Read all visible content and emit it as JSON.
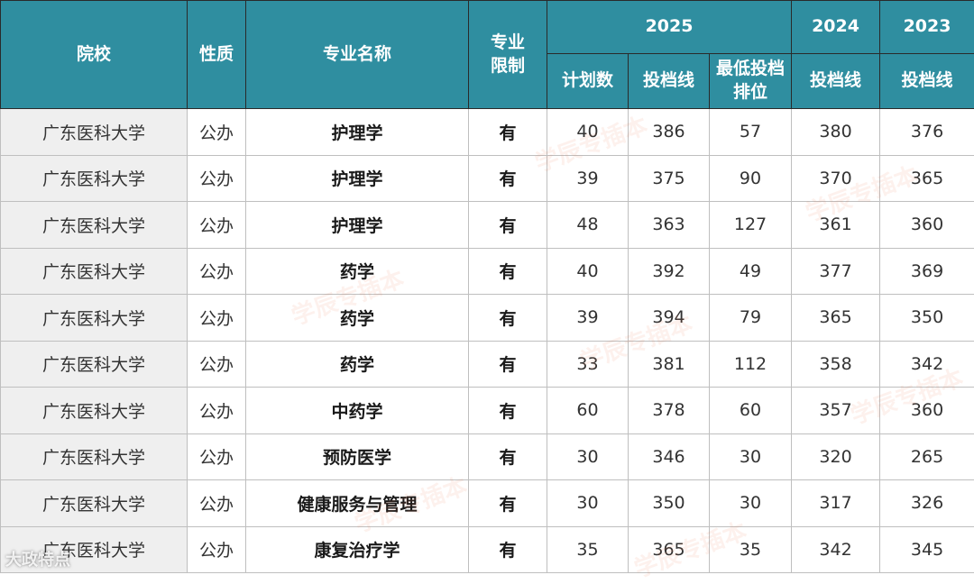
{
  "header": {
    "school": "院校",
    "nature": "性质",
    "major": "专业名称",
    "limit": "专业限制",
    "year_2025": "2025",
    "year_2024": "2024",
    "year_2023": "2023",
    "plan": "计划数",
    "line_2025": "投档线",
    "min_rank": "最低投档排位",
    "line_2024": "投档线",
    "line_2023": "投档线"
  },
  "rows": [
    {
      "school": "广东医科大学",
      "nature": "公办",
      "major": "护理学",
      "limit": "有",
      "plan": "40",
      "line2025": "386",
      "rank": "57",
      "line2024": "380",
      "line2023": "376"
    },
    {
      "school": "广东医科大学",
      "nature": "公办",
      "major": "护理学",
      "limit": "有",
      "plan": "39",
      "line2025": "375",
      "rank": "90",
      "line2024": "370",
      "line2023": "365"
    },
    {
      "school": "广东医科大学",
      "nature": "公办",
      "major": "护理学",
      "limit": "有",
      "plan": "48",
      "line2025": "363",
      "rank": "127",
      "line2024": "361",
      "line2023": "360"
    },
    {
      "school": "广东医科大学",
      "nature": "公办",
      "major": "药学",
      "limit": "有",
      "plan": "40",
      "line2025": "392",
      "rank": "49",
      "line2024": "377",
      "line2023": "369"
    },
    {
      "school": "广东医科大学",
      "nature": "公办",
      "major": "药学",
      "limit": "有",
      "plan": "39",
      "line2025": "394",
      "rank": "79",
      "line2024": "365",
      "line2023": "350"
    },
    {
      "school": "广东医科大学",
      "nature": "公办",
      "major": "药学",
      "limit": "有",
      "plan": "33",
      "line2025": "381",
      "rank": "112",
      "line2024": "358",
      "line2023": "342"
    },
    {
      "school": "广东医科大学",
      "nature": "公办",
      "major": "中药学",
      "limit": "有",
      "plan": "60",
      "line2025": "378",
      "rank": "60",
      "line2024": "357",
      "line2023": "360"
    },
    {
      "school": "广东医科大学",
      "nature": "公办",
      "major": "预防医学",
      "limit": "有",
      "plan": "30",
      "line2025": "346",
      "rank": "30",
      "line2024": "320",
      "line2023": "265"
    },
    {
      "school": "广东医科大学",
      "nature": "公办",
      "major": "健康服务与管理",
      "limit": "有",
      "plan": "30",
      "line2025": "350",
      "rank": "30",
      "line2024": "317",
      "line2023": "326"
    },
    {
      "school": "广东医科大学",
      "nature": "公办",
      "major": "康复治疗学",
      "limit": "有",
      "plan": "35",
      "line2025": "365",
      "rank": "35",
      "line2024": "342",
      "line2023": "345"
    }
  ],
  "watermark": "学辰专插本",
  "corner_logo": "大政特点"
}
